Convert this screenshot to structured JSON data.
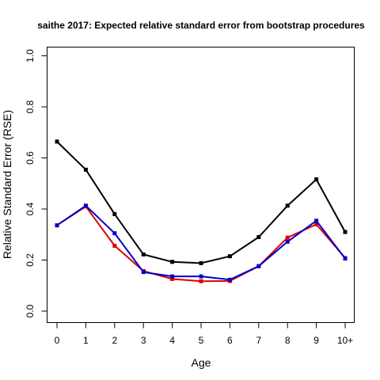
{
  "chart_data": {
    "type": "line",
    "title": "saithe 2017: Expected relative standard error from bootstrap procedures",
    "xlabel": "Age",
    "ylabel": "Relative Standard Error (RSE)",
    "categories": [
      "0",
      "1",
      "2",
      "3",
      "4",
      "5",
      "6",
      "7",
      "8",
      "9",
      "10+"
    ],
    "ylim": [
      0,
      1
    ],
    "yticks": [
      "0.0",
      "0.2",
      "0.4",
      "0.6",
      "0.8",
      "1.0"
    ],
    "grid": false,
    "series": [
      {
        "color": "#000000",
        "values": [
          0.664,
          0.554,
          0.38,
          0.222,
          0.193,
          0.188,
          0.215,
          0.29,
          0.413,
          0.516,
          0.31
        ]
      },
      {
        "color": "#dd0000",
        "values": [
          0.336,
          0.41,
          0.256,
          0.157,
          0.126,
          0.117,
          0.118,
          0.176,
          0.288,
          0.34,
          0.208
        ]
      },
      {
        "color": "#0000cc",
        "values": [
          0.336,
          0.413,
          0.305,
          0.153,
          0.136,
          0.136,
          0.123,
          0.176,
          0.272,
          0.354,
          0.206
        ]
      }
    ]
  }
}
